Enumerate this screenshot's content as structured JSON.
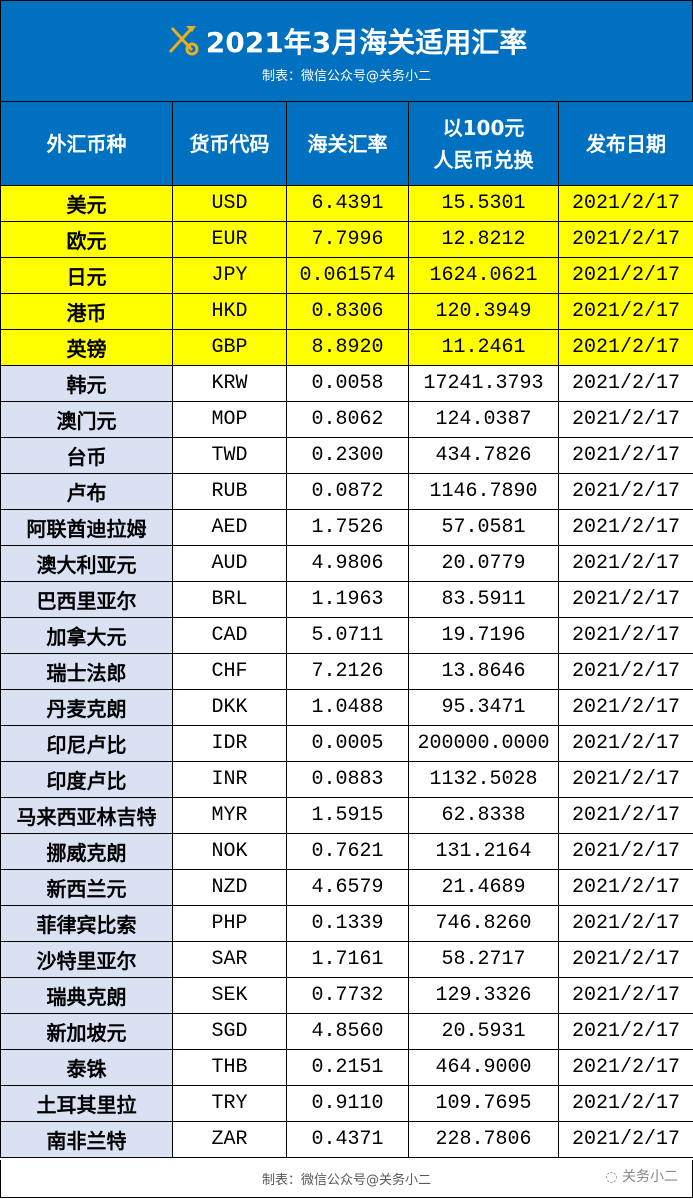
{
  "header": {
    "title": "2021年3月海关适用汇率",
    "subtitle": "制表：微信公众号@关务小二",
    "logo_icon": "customs-key-emblem-icon"
  },
  "columns": [
    "外汇币种",
    "货币代码",
    "海关汇率",
    "以100元\n人民币兑换",
    "发布日期"
  ],
  "highlight_color": "#ffff00",
  "header_color": "#0070c0",
  "rows": [
    {
      "name": "美元",
      "code": "USD",
      "rate": "6.4391",
      "per100": "15.5301",
      "date": "2021/2/17",
      "highlight": true
    },
    {
      "name": "欧元",
      "code": "EUR",
      "rate": "7.7996",
      "per100": "12.8212",
      "date": "2021/2/17",
      "highlight": true
    },
    {
      "name": "日元",
      "code": "JPY",
      "rate": "0.061574",
      "per100": "1624.0621",
      "date": "2021/2/17",
      "highlight": true
    },
    {
      "name": "港币",
      "code": "HKD",
      "rate": "0.8306",
      "per100": "120.3949",
      "date": "2021/2/17",
      "highlight": true
    },
    {
      "name": "英镑",
      "code": "GBP",
      "rate": "8.8920",
      "per100": "11.2461",
      "date": "2021/2/17",
      "highlight": true
    },
    {
      "name": "韩元",
      "code": "KRW",
      "rate": "0.0058",
      "per100": "17241.3793",
      "date": "2021/2/17"
    },
    {
      "name": "澳门元",
      "code": "MOP",
      "rate": "0.8062",
      "per100": "124.0387",
      "date": "2021/2/17"
    },
    {
      "name": "台币",
      "code": "TWD",
      "rate": "0.2300",
      "per100": "434.7826",
      "date": "2021/2/17"
    },
    {
      "name": "卢布",
      "code": "RUB",
      "rate": "0.0872",
      "per100": "1146.7890",
      "date": "2021/2/17"
    },
    {
      "name": "阿联酋迪拉姆",
      "code": "AED",
      "rate": "1.7526",
      "per100": "57.0581",
      "date": "2021/2/17"
    },
    {
      "name": "澳大利亚元",
      "code": "AUD",
      "rate": "4.9806",
      "per100": "20.0779",
      "date": "2021/2/17"
    },
    {
      "name": "巴西里亚尔",
      "code": "BRL",
      "rate": "1.1963",
      "per100": "83.5911",
      "date": "2021/2/17"
    },
    {
      "name": "加拿大元",
      "code": "CAD",
      "rate": "5.0711",
      "per100": "19.7196",
      "date": "2021/2/17"
    },
    {
      "name": "瑞士法郎",
      "code": "CHF",
      "rate": "7.2126",
      "per100": "13.8646",
      "date": "2021/2/17"
    },
    {
      "name": "丹麦克朗",
      "code": "DKK",
      "rate": "1.0488",
      "per100": "95.3471",
      "date": "2021/2/17"
    },
    {
      "name": "印尼卢比",
      "code": "IDR",
      "rate": "0.0005",
      "per100": "200000.0000",
      "date": "2021/2/17"
    },
    {
      "name": "印度卢比",
      "code": "INR",
      "rate": "0.0883",
      "per100": "1132.5028",
      "date": "2021/2/17"
    },
    {
      "name": "马来西亚林吉特",
      "code": "MYR",
      "rate": "1.5915",
      "per100": "62.8338",
      "date": "2021/2/17"
    },
    {
      "name": "挪威克朗",
      "code": "NOK",
      "rate": "0.7621",
      "per100": "131.2164",
      "date": "2021/2/17"
    },
    {
      "name": "新西兰元",
      "code": "NZD",
      "rate": "4.6579",
      "per100": "21.4689",
      "date": "2021/2/17"
    },
    {
      "name": "菲律宾比索",
      "code": "PHP",
      "rate": "0.1339",
      "per100": "746.8260",
      "date": "2021/2/17"
    },
    {
      "name": "沙特里亚尔",
      "code": "SAR",
      "rate": "1.7161",
      "per100": "58.2717",
      "date": "2021/2/17"
    },
    {
      "name": "瑞典克朗",
      "code": "SEK",
      "rate": "0.7732",
      "per100": "129.3326",
      "date": "2021/2/17"
    },
    {
      "name": "新加坡元",
      "code": "SGD",
      "rate": "4.8560",
      "per100": "20.5931",
      "date": "2021/2/17"
    },
    {
      "name": "泰铢",
      "code": "THB",
      "rate": "0.2151",
      "per100": "464.9000",
      "date": "2021/2/17"
    },
    {
      "name": "土耳其里拉",
      "code": "TRY",
      "rate": "0.9110",
      "per100": "109.7695",
      "date": "2021/2/17"
    },
    {
      "name": "南非兰特",
      "code": "ZAR",
      "rate": "0.4371",
      "per100": "228.7806",
      "date": "2021/2/17"
    }
  ],
  "footer": {
    "text": "制表：微信公众号@关务小二",
    "watermark": "关务小二",
    "watermark_icon": "wechat-icon"
  }
}
